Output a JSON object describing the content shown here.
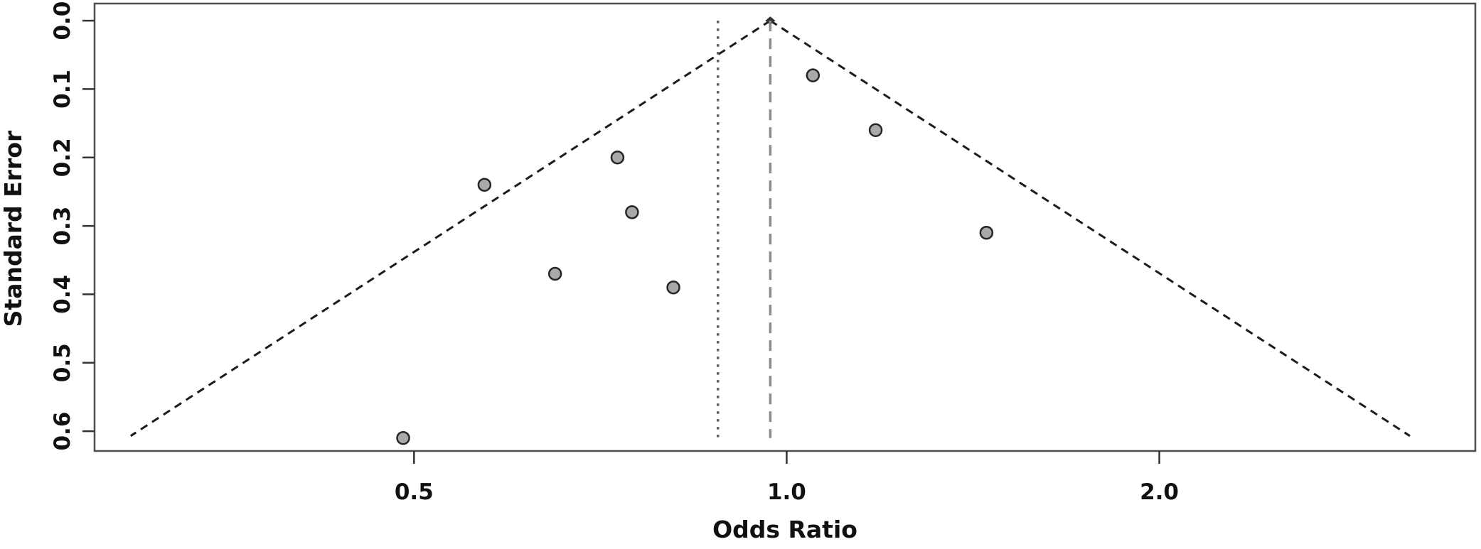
{
  "chart_data": {
    "type": "scatter",
    "subtype": "funnel-plot",
    "title": "",
    "xlabel": "Odds Ratio",
    "ylabel": "Standard Error",
    "x_scale": "log",
    "x_ticks": [
      0.5,
      1,
      2
    ],
    "x_tick_labels": [
      "0.5",
      "1.0",
      "2.0"
    ],
    "y_ticks": [
      0,
      0.1,
      0.2,
      0.3,
      0.4,
      0.5,
      0.6
    ],
    "y_tick_labels": [
      "0.0",
      "0.1",
      "0.2",
      "0.3",
      "0.4",
      "0.5",
      "0.6"
    ],
    "xlim": [
      0.276,
      3.6
    ],
    "ylim_se": [
      -0.025,
      0.629
    ],
    "y_axis_inverted": true,
    "grid": false,
    "legend": null,
    "points": [
      {
        "odds_ratio": 0.49,
        "standard_error": 0.61
      },
      {
        "odds_ratio": 0.57,
        "standard_error": 0.24
      },
      {
        "odds_ratio": 0.65,
        "standard_error": 0.37
      },
      {
        "odds_ratio": 0.73,
        "standard_error": 0.2
      },
      {
        "odds_ratio": 0.75,
        "standard_error": 0.28
      },
      {
        "odds_ratio": 0.81,
        "standard_error": 0.39
      },
      {
        "odds_ratio": 1.05,
        "standard_error": 0.08
      },
      {
        "odds_ratio": 1.18,
        "standard_error": 0.16
      },
      {
        "odds_ratio": 1.45,
        "standard_error": 0.31
      }
    ],
    "funnel": {
      "apex_odds_ratio": 0.97,
      "z_value": 1.96,
      "base_standard_error": 0.607
    },
    "reference_lines": [
      {
        "name": "pooled-estimate",
        "odds_ratio": 0.97,
        "style": "dashed",
        "color": "#8c8c8c",
        "se_range": [
          0,
          0.61
        ]
      },
      {
        "name": "secondary-reference",
        "odds_ratio": 0.88,
        "style": "dotted",
        "color": "#5f5f5f",
        "se_range": [
          0,
          0.61
        ]
      }
    ],
    "colors": {
      "background": "#ffffff",
      "point_fill": "#a9a9a9",
      "point_stroke": "#262626",
      "funnel_line": "#1c1c1c",
      "axis_line": "#4d4d4d",
      "tick_color": "#333333",
      "tick_label": "#111111"
    }
  }
}
